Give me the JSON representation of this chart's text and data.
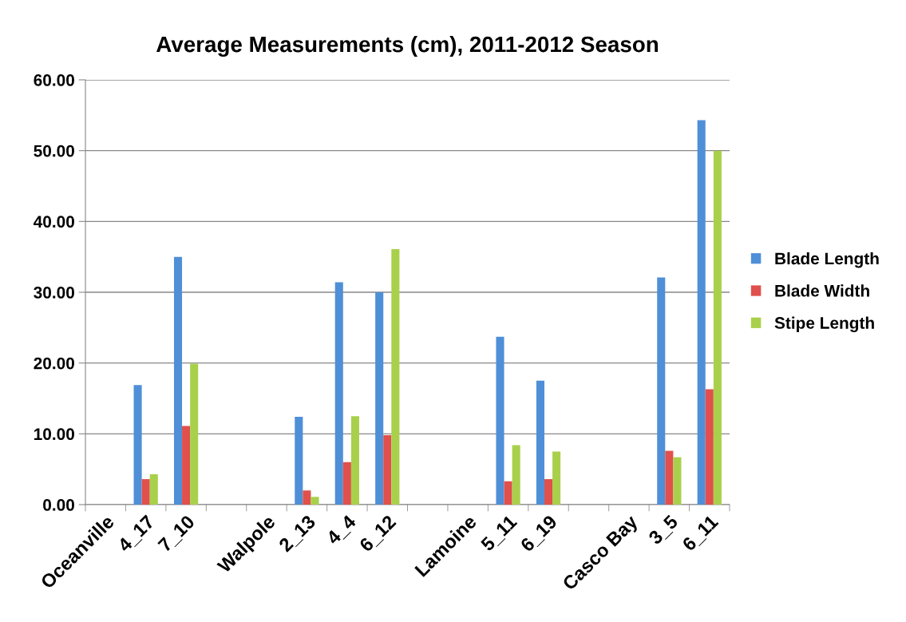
{
  "chart_data": {
    "type": "bar",
    "title": "Average Measurements (cm), 2011-2012 Season",
    "categories": [
      "Oceanville",
      "4_17",
      "7_10",
      null,
      "Walpole",
      "2_13",
      "4_4",
      "6_12",
      null,
      "Lamoine",
      "5_11",
      "6_19",
      null,
      "Casco Bay",
      "3_5",
      "6_11"
    ],
    "series": [
      {
        "name": "Blade Length",
        "color": "#4f8fd8",
        "values": [
          null,
          16.9,
          35.0,
          null,
          null,
          12.4,
          31.4,
          30.0,
          null,
          null,
          23.7,
          17.5,
          null,
          null,
          32.1,
          54.3
        ]
      },
      {
        "name": "Blade Width",
        "color": "#e0504c",
        "values": [
          null,
          3.6,
          11.1,
          null,
          null,
          2.0,
          6.0,
          9.8,
          null,
          null,
          3.3,
          3.6,
          null,
          null,
          7.6,
          16.3
        ]
      },
      {
        "name": "Stipe Length",
        "color": "#a9d04b",
        "values": [
          null,
          4.3,
          19.9,
          null,
          null,
          1.1,
          12.5,
          36.1,
          null,
          null,
          8.4,
          7.5,
          null,
          null,
          6.7,
          50.0
        ]
      }
    ],
    "ylim": [
      0,
      60
    ],
    "yticks": [
      {
        "value": 0,
        "label": "0.00"
      },
      {
        "value": 10,
        "label": "10.00"
      },
      {
        "value": 20,
        "label": "20.00"
      },
      {
        "value": 30,
        "label": "30.00"
      },
      {
        "value": 40,
        "label": "40.00"
      },
      {
        "value": 50,
        "label": "50.00"
      },
      {
        "value": 60,
        "label": "60.00"
      }
    ],
    "grid": "y",
    "legend": "right"
  }
}
